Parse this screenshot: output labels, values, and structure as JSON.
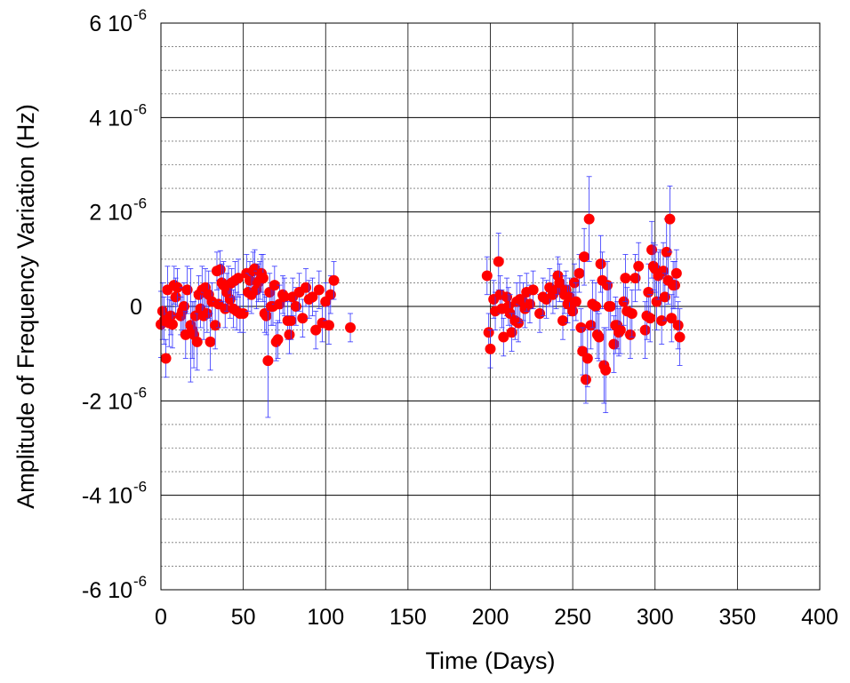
{
  "chart_data": {
    "type": "scatter",
    "xlabel": "Time (Days)",
    "ylabel": "Amplitude of Frequency Variation (Hz)",
    "xlim": [
      0,
      400
    ],
    "ylim": [
      -6e-06,
      6e-06
    ],
    "x_ticks": [
      {
        "value": 0,
        "label": "0"
      },
      {
        "value": 50,
        "label": "50"
      },
      {
        "value": 100,
        "label": "100"
      },
      {
        "value": 150,
        "label": "150"
      },
      {
        "value": 200,
        "label": "200"
      },
      {
        "value": 250,
        "label": "250"
      },
      {
        "value": 300,
        "label": "300"
      },
      {
        "value": 350,
        "label": "350"
      },
      {
        "value": 400,
        "label": "400"
      }
    ],
    "y_ticks": [
      {
        "value": 6e-06,
        "mantissa": "6 10",
        "exponent": "-6"
      },
      {
        "value": 4e-06,
        "mantissa": "4 10",
        "exponent": "-6"
      },
      {
        "value": 2e-06,
        "mantissa": "2 10",
        "exponent": "-6"
      },
      {
        "value": 0,
        "mantissa": "0",
        "exponent": ""
      },
      {
        "value": -2e-06,
        "mantissa": "-2 10",
        "exponent": "-6"
      },
      {
        "value": -4e-06,
        "mantissa": "-4 10",
        "exponent": "-6"
      },
      {
        "value": -6e-06,
        "mantissa": "-6 10",
        "exponent": "-6"
      }
    ],
    "grid": {
      "major_y": true,
      "minor_y_dashed": true,
      "major_x": true
    },
    "marker_color": "#ff0000",
    "errorbar_color": "#3333ff",
    "y_unit_scale": 1e-06,
    "points": [
      [
        0,
        -0.38,
        0.7
      ],
      [
        1,
        -0.1,
        0.6
      ],
      [
        2,
        -0.3,
        0.5
      ],
      [
        3,
        -1.1,
        0.4
      ],
      [
        4,
        0.35,
        0.5
      ],
      [
        5,
        -0.35,
        0.5
      ],
      [
        6,
        -0.2,
        0.4
      ],
      [
        7,
        -0.38,
        0.5
      ],
      [
        8,
        0.45,
        0.4
      ],
      [
        9,
        0.2,
        0.4
      ],
      [
        10,
        0.4,
        0.4
      ],
      [
        12,
        -0.2,
        0.4
      ],
      [
        13,
        -0.1,
        0.5
      ],
      [
        14,
        0.0,
        0.5
      ],
      [
        15,
        -0.6,
        0.5
      ],
      [
        16,
        0.35,
        0.5
      ],
      [
        18,
        -0.4,
        1.2
      ],
      [
        19,
        -0.5,
        0.6
      ],
      [
        20,
        -0.6,
        0.7
      ],
      [
        21,
        -0.2,
        0.5
      ],
      [
        22,
        -0.75,
        0.6
      ],
      [
        23,
        0.25,
        0.4
      ],
      [
        24,
        -0.05,
        0.4
      ],
      [
        25,
        0.35,
        0.5
      ],
      [
        26,
        -0.2,
        0.5
      ],
      [
        27,
        0.4,
        0.4
      ],
      [
        28,
        -0.15,
        0.4
      ],
      [
        29,
        0.25,
        0.5
      ],
      [
        30,
        -0.75,
        0.6
      ],
      [
        31,
        0.1,
        0.4
      ],
      [
        33,
        -0.4,
        0.5
      ],
      [
        34,
        0.75,
        0.4
      ],
      [
        35,
        0.05,
        0.5
      ],
      [
        36,
        0.78,
        0.4
      ],
      [
        37,
        0.5,
        0.4
      ],
      [
        38,
        0.45,
        0.5
      ],
      [
        39,
        -0.05,
        0.4
      ],
      [
        40,
        0.3,
        0.4
      ],
      [
        41,
        0.45,
        0.4
      ],
      [
        42,
        0.15,
        0.4
      ],
      [
        43,
        0.5,
        0.3
      ],
      [
        44,
        -0.05,
        0.4
      ],
      [
        45,
        0.55,
        0.4
      ],
      [
        46,
        -0.1,
        0.4
      ],
      [
        47,
        0.6,
        0.4
      ],
      [
        48,
        -0.15,
        0.4
      ],
      [
        50,
        -0.15,
        0.4
      ],
      [
        52,
        0.7,
        0.4
      ],
      [
        53,
        0.3,
        0.4
      ],
      [
        54,
        0.55,
        0.4
      ],
      [
        55,
        0.25,
        0.4
      ],
      [
        56,
        0.75,
        0.4
      ],
      [
        57,
        0.8,
        0.4
      ],
      [
        58,
        0.35,
        0.4
      ],
      [
        59,
        0.5,
        0.4
      ],
      [
        60,
        0.55,
        0.4
      ],
      [
        61,
        0.7,
        0.4
      ],
      [
        62,
        0.6,
        0.5
      ],
      [
        63,
        -0.15,
        0.4
      ],
      [
        64,
        -0.2,
        0.4
      ],
      [
        65,
        -1.15,
        1.2
      ],
      [
        66,
        0.3,
        0.4
      ],
      [
        67,
        0.0,
        0.4
      ],
      [
        68,
        0.0,
        0.4
      ],
      [
        69,
        0.45,
        0.4
      ],
      [
        70,
        -0.75,
        0.4
      ],
      [
        71,
        -0.7,
        0.4
      ],
      [
        72,
        0.05,
        0.4
      ],
      [
        74,
        0.25,
        0.4
      ],
      [
        75,
        0.2,
        0.4
      ],
      [
        77,
        -0.3,
        0.4
      ],
      [
        78,
        -0.6,
        0.4
      ],
      [
        79,
        -0.3,
        0.4
      ],
      [
        80,
        0.2,
        0.4
      ],
      [
        82,
        0.0,
        0.4
      ],
      [
        84,
        0.3,
        0.4
      ],
      [
        86,
        -0.25,
        0.4
      ],
      [
        88,
        0.4,
        0.4
      ],
      [
        90,
        0.15,
        0.4
      ],
      [
        92,
        0.2,
        0.4
      ],
      [
        94,
        -0.5,
        0.4
      ],
      [
        96,
        0.35,
        0.4
      ],
      [
        98,
        -0.35,
        0.4
      ],
      [
        100,
        0.1,
        0.4
      ],
      [
        102,
        -0.4,
        0.4
      ],
      [
        103,
        0.25,
        0.4
      ],
      [
        105,
        0.55,
        0.4
      ],
      [
        115,
        -0.45,
        0.3
      ],
      [
        198,
        0.65,
        0.4
      ],
      [
        199,
        -0.55,
        0.4
      ],
      [
        200,
        -0.9,
        0.4
      ],
      [
        202,
        0.15,
        0.4
      ],
      [
        203,
        -0.1,
        0.4
      ],
      [
        205,
        0.95,
        0.6
      ],
      [
        206,
        0.25,
        0.4
      ],
      [
        207,
        -0.05,
        0.4
      ],
      [
        208,
        -0.65,
        0.4
      ],
      [
        210,
        0.2,
        0.4
      ],
      [
        211,
        0.0,
        0.4
      ],
      [
        212,
        -0.15,
        0.4
      ],
      [
        213,
        -0.55,
        0.4
      ],
      [
        215,
        -0.3,
        0.4
      ],
      [
        216,
        0.1,
        0.4
      ],
      [
        217,
        -0.35,
        0.4
      ],
      [
        218,
        0.15,
        0.5
      ],
      [
        220,
        0.1,
        0.4
      ],
      [
        221,
        -0.05,
        0.4
      ],
      [
        222,
        0.3,
        0.4
      ],
      [
        224,
        0.05,
        0.4
      ],
      [
        226,
        0.35,
        0.4
      ],
      [
        230,
        -0.15,
        0.4
      ],
      [
        232,
        0.2,
        0.4
      ],
      [
        234,
        0.15,
        0.4
      ],
      [
        236,
        0.4,
        0.4
      ],
      [
        238,
        0.25,
        0.4
      ],
      [
        240,
        0.35,
        0.4
      ],
      [
        241,
        0.65,
        0.4
      ],
      [
        242,
        0.5,
        0.4
      ],
      [
        244,
        -0.3,
        0.4
      ],
      [
        245,
        0.25,
        0.4
      ],
      [
        246,
        0.35,
        0.4
      ],
      [
        247,
        0.05,
        0.4
      ],
      [
        248,
        0.2,
        0.4
      ],
      [
        250,
        -0.1,
        0.4
      ],
      [
        251,
        0.5,
        0.4
      ],
      [
        252,
        0.1,
        0.4
      ],
      [
        254,
        0.7,
        0.4
      ],
      [
        255,
        -0.45,
        0.4
      ],
      [
        256,
        -0.95,
        0.5
      ],
      [
        257,
        1.05,
        0.6
      ],
      [
        258,
        -1.55,
        0.5
      ],
      [
        259,
        -1.1,
        0.6
      ],
      [
        260,
        1.85,
        0.9
      ],
      [
        261,
        -0.4,
        0.5
      ],
      [
        262,
        0.05,
        0.5
      ],
      [
        264,
        0.0,
        0.5
      ],
      [
        265,
        -0.6,
        0.5
      ],
      [
        266,
        -0.65,
        0.5
      ],
      [
        267,
        0.9,
        0.6
      ],
      [
        268,
        0.55,
        0.6
      ],
      [
        269,
        -1.25,
        0.8
      ],
      [
        270,
        -1.35,
        0.9
      ],
      [
        271,
        0.45,
        0.5
      ],
      [
        272,
        0.0,
        0.5
      ],
      [
        273,
        0.0,
        0.5
      ],
      [
        275,
        -0.8,
        0.6
      ],
      [
        276,
        -0.4,
        0.6
      ],
      [
        277,
        -0.4,
        0.5
      ],
      [
        278,
        -0.55,
        0.5
      ],
      [
        279,
        -0.5,
        0.5
      ],
      [
        281,
        0.1,
        0.5
      ],
      [
        282,
        0.6,
        0.5
      ],
      [
        283,
        -0.1,
        0.5
      ],
      [
        285,
        -0.6,
        0.5
      ],
      [
        286,
        -0.15,
        0.5
      ],
      [
        288,
        0.6,
        0.5
      ],
      [
        290,
        0.85,
        0.5
      ],
      [
        294,
        -0.5,
        0.6
      ],
      [
        295,
        -0.2,
        0.5
      ],
      [
        296,
        0.3,
        0.6
      ],
      [
        297,
        -0.25,
        0.5
      ],
      [
        298,
        1.2,
        0.6
      ],
      [
        299,
        0.85,
        0.5
      ],
      [
        300,
        0.8,
        0.5
      ],
      [
        301,
        0.1,
        0.6
      ],
      [
        302,
        0.65,
        0.5
      ],
      [
        303,
        0.7,
        0.5
      ],
      [
        304,
        -0.3,
        0.5
      ],
      [
        305,
        0.75,
        0.6
      ],
      [
        306,
        0.2,
        0.5
      ],
      [
        307,
        1.15,
        0.7
      ],
      [
        308,
        0.55,
        0.5
      ],
      [
        309,
        1.85,
        0.7
      ],
      [
        310,
        -0.25,
        0.5
      ],
      [
        311,
        0.45,
        0.5
      ],
      [
        312,
        0.45,
        0.5
      ],
      [
        313,
        0.7,
        0.5
      ],
      [
        314,
        -0.4,
        0.5
      ],
      [
        315,
        -0.65,
        0.6
      ]
    ]
  }
}
